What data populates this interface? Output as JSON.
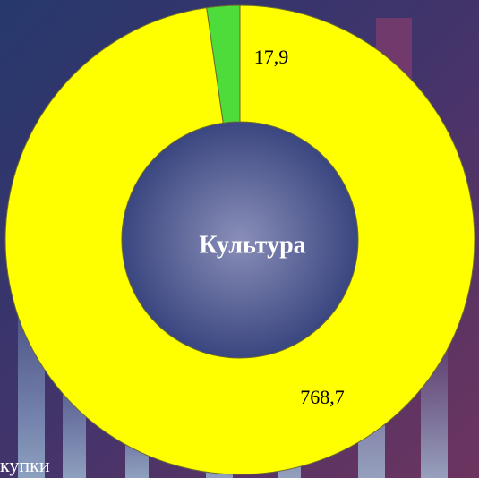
{
  "chart_data": {
    "type": "donut",
    "center_label": "Культура",
    "categories": [
      null,
      null
    ],
    "values": [
      17.9,
      768.7
    ],
    "value_labels": [
      "17,9",
      "768,7"
    ],
    "colors": [
      "#4ddc3a",
      "#ffff00"
    ],
    "footer_text": "купки"
  }
}
